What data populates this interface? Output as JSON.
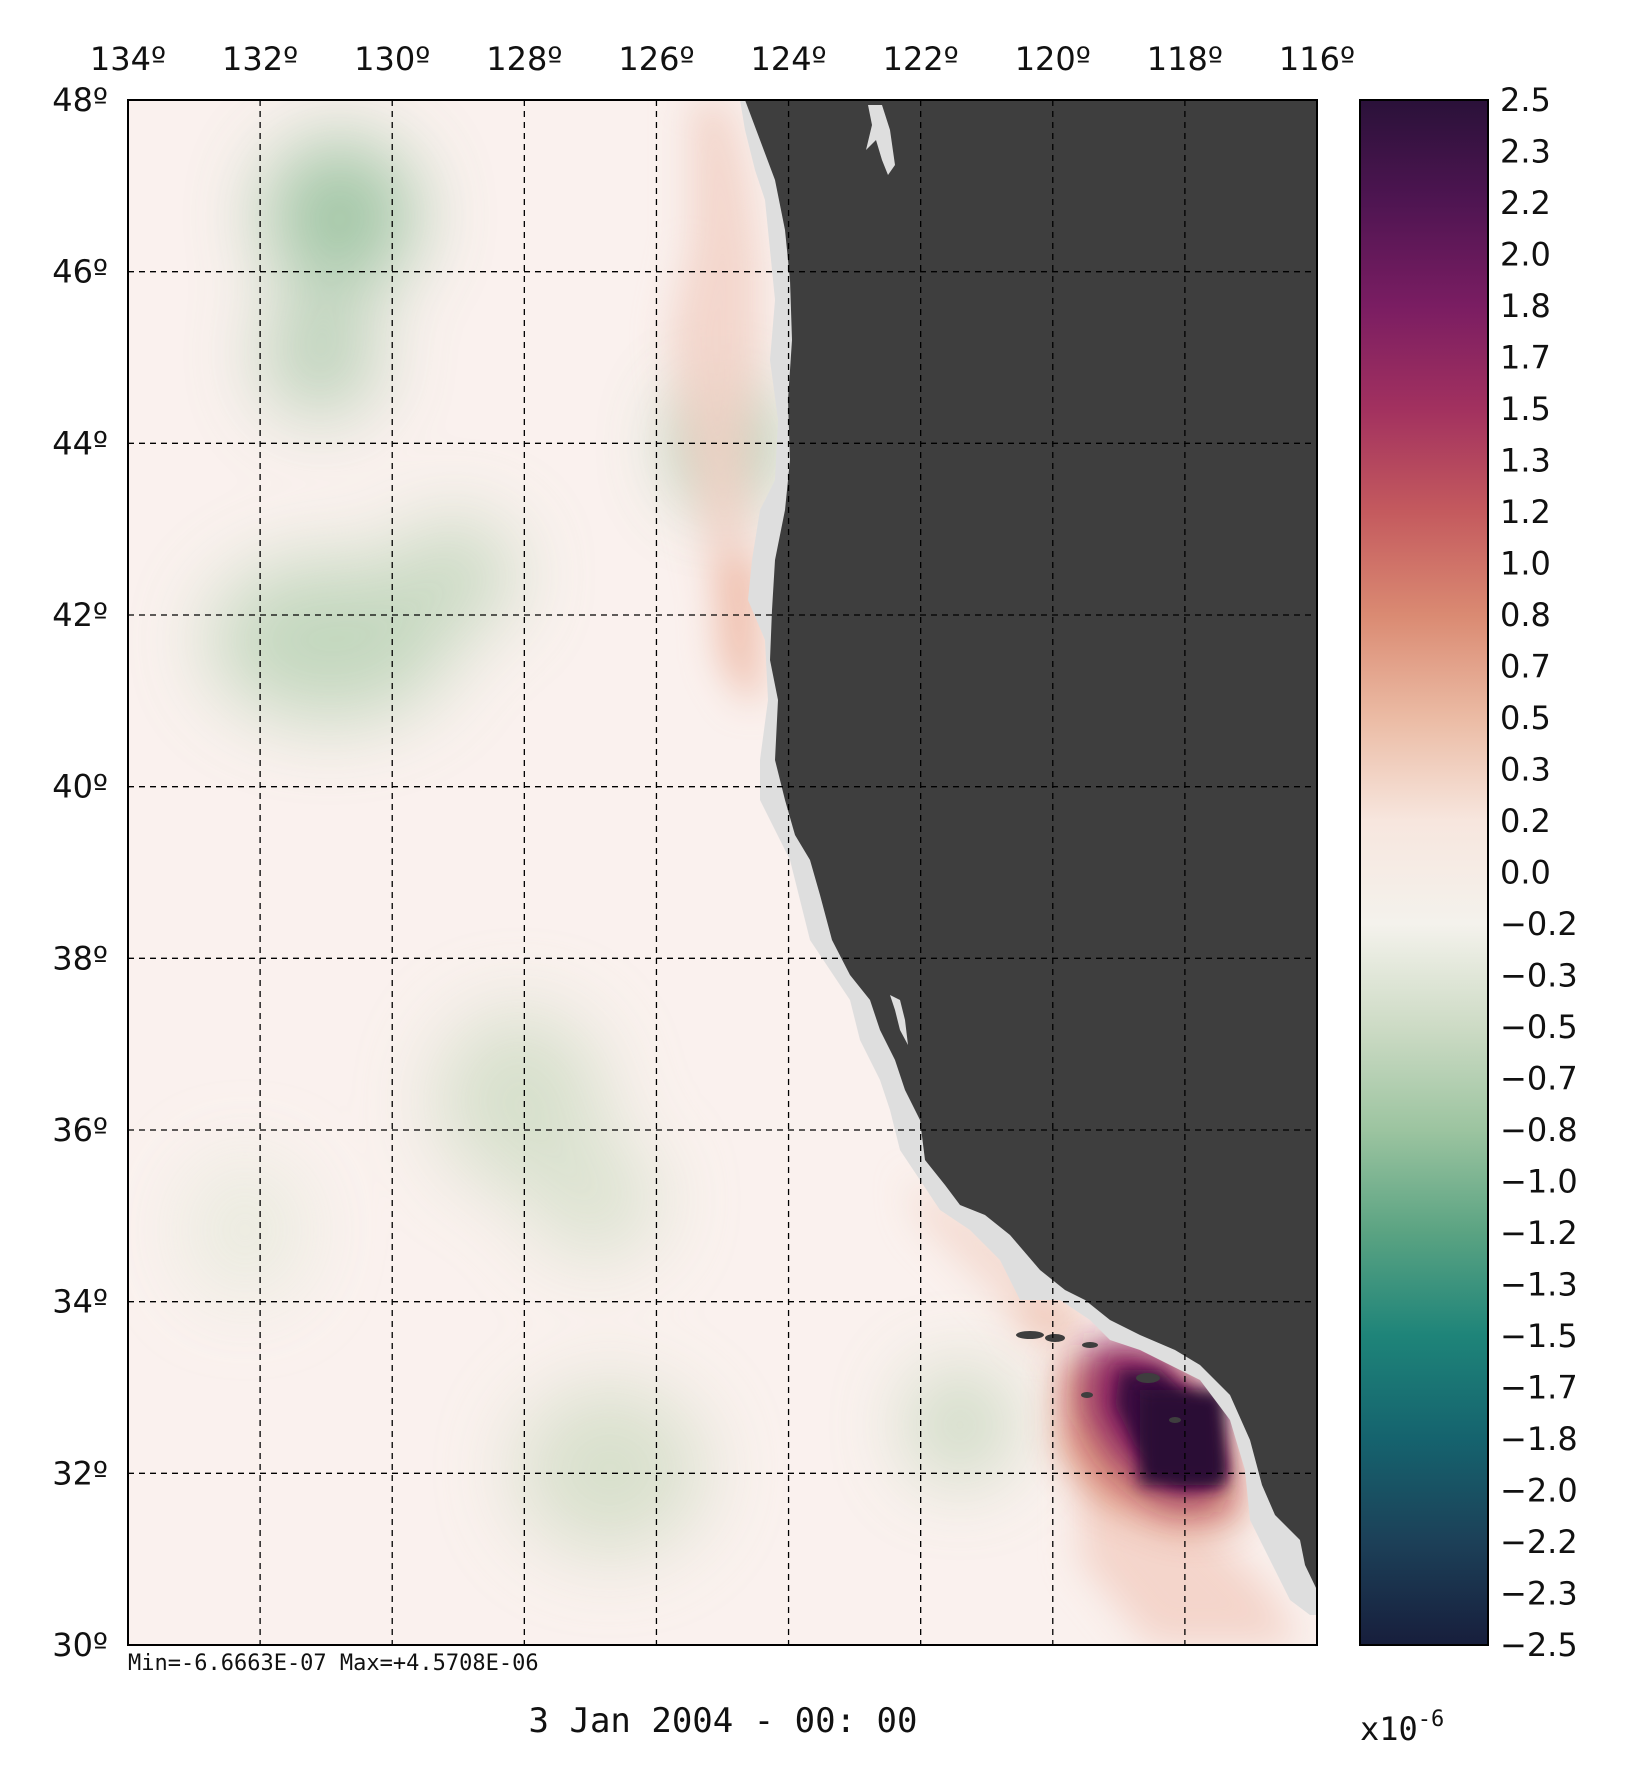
{
  "map": {
    "lon_ticks": [
      "134º",
      "132º",
      "130º",
      "128º",
      "126º",
      "124º",
      "122º",
      "120º",
      "118º",
      "116º"
    ],
    "lon_values": [
      134,
      132,
      130,
      128,
      126,
      124,
      122,
      120,
      118,
      116
    ],
    "lat_ticks": [
      "48º",
      "46º",
      "44º",
      "42º",
      "40º",
      "38º",
      "36º",
      "34º",
      "32º",
      "30º"
    ],
    "lat_values": [
      48,
      46,
      44,
      42,
      40,
      38,
      36,
      34,
      32,
      30
    ],
    "lon_range": [
      134,
      116
    ],
    "lat_range": [
      48,
      30
    ],
    "gridlines": "dashed",
    "land_color": "#3e3e3e",
    "coast_mask_color": "#dedede",
    "ocean_base_color": "#faf1ee",
    "stats": "Min=-6.6663E-07  Max=+4.5708E-06",
    "timestamp": "3 Jan 2004 - 00: 00"
  },
  "colorbar": {
    "ticks": [
      "2.5",
      "2.3",
      "2.2",
      "2.0",
      "1.8",
      "1.7",
      "1.5",
      "1.3",
      "1.2",
      "1.0",
      "0.8",
      "0.7",
      "0.5",
      "0.3",
      "0.2",
      "0.0",
      "−0.2",
      "−0.3",
      "−0.5",
      "−0.7",
      "−0.8",
      "−1.0",
      "−1.2",
      "−1.3",
      "−1.5",
      "−1.7",
      "−1.8",
      "−2.0",
      "−2.2",
      "−2.3",
      "−2.5"
    ],
    "range": [
      2.5,
      -2.5
    ],
    "scale_prefix": "x10",
    "scale_exponent": "-6",
    "colors": [
      "#2a1139",
      "#4f1552",
      "#7a1d62",
      "#a2315f",
      "#c45a5e",
      "#da8a72",
      "#ebbba4",
      "#f7e6de",
      "#f4f2ec",
      "#cddbc5",
      "#9cc4a0",
      "#5aa382",
      "#1e8479",
      "#15636e",
      "#1c4058",
      "#171e3c"
    ]
  }
}
